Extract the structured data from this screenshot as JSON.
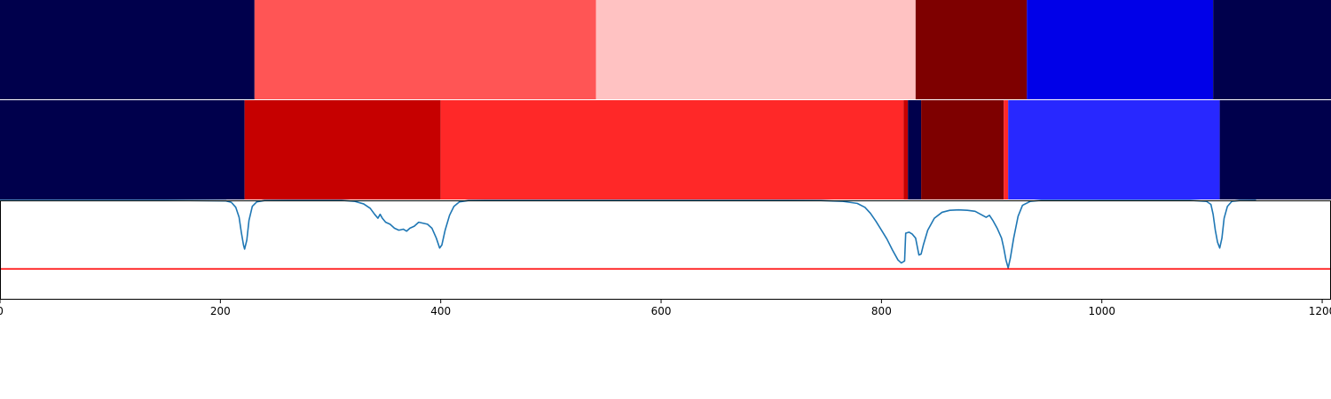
{
  "chart_data": [
    {
      "type": "segments",
      "xlim": [
        0,
        1208
      ],
      "segments": [
        {
          "start": 0,
          "end": 231,
          "color": "#00004c"
        },
        {
          "start": 231,
          "end": 541,
          "color": "#ff5555"
        },
        {
          "start": 541,
          "end": 831,
          "color": "#ffc2c2"
        },
        {
          "start": 831,
          "end": 932,
          "color": "#7e0000"
        },
        {
          "start": 932,
          "end": 1101,
          "color": "#0000e8"
        },
        {
          "start": 1101,
          "end": 1208,
          "color": "#00004c"
        }
      ]
    },
    {
      "type": "segments",
      "xlim": [
        0,
        1208
      ],
      "segments": [
        {
          "start": 0,
          "end": 222,
          "color": "#00004c"
        },
        {
          "start": 222,
          "end": 400,
          "color": "#c60000"
        },
        {
          "start": 400,
          "end": 820,
          "color": "#ff2828"
        },
        {
          "start": 820,
          "end": 824,
          "color": "#c60000"
        },
        {
          "start": 824,
          "end": 836,
          "color": "#00004c"
        },
        {
          "start": 836,
          "end": 911,
          "color": "#7e0000"
        },
        {
          "start": 911,
          "end": 915,
          "color": "#ff2828"
        },
        {
          "start": 915,
          "end": 1107,
          "color": "#2828ff"
        },
        {
          "start": 1107,
          "end": 1208,
          "color": "#00004c"
        }
      ]
    },
    {
      "type": "line",
      "xlim": [
        0,
        1208
      ],
      "ylim": [
        0,
        1
      ],
      "x_ticks": [
        0,
        200,
        400,
        600,
        800,
        1000,
        1200
      ],
      "series": [
        {
          "color": "#1f77b4",
          "points": [
            [
              0,
              1.0
            ],
            [
              150,
              1.0
            ],
            [
              205,
              0.995
            ],
            [
              210,
              0.98
            ],
            [
              214,
              0.93
            ],
            [
              217,
              0.83
            ],
            [
              219,
              0.68
            ],
            [
              221,
              0.55
            ],
            [
              222,
              0.51
            ],
            [
              224,
              0.6
            ],
            [
              226,
              0.8
            ],
            [
              229,
              0.94
            ],
            [
              233,
              0.985
            ],
            [
              240,
              0.998
            ],
            [
              260,
              1.0
            ],
            [
              310,
              1.0
            ],
            [
              322,
              0.99
            ],
            [
              330,
              0.965
            ],
            [
              336,
              0.92
            ],
            [
              340,
              0.86
            ],
            [
              343,
              0.82
            ],
            [
              345,
              0.86
            ],
            [
              347,
              0.82
            ],
            [
              350,
              0.78
            ],
            [
              354,
              0.76
            ],
            [
              358,
              0.72
            ],
            [
              362,
              0.7
            ],
            [
              366,
              0.71
            ],
            [
              369,
              0.69
            ],
            [
              372,
              0.72
            ],
            [
              376,
              0.74
            ],
            [
              380,
              0.78
            ],
            [
              384,
              0.77
            ],
            [
              388,
              0.76
            ],
            [
              392,
              0.72
            ],
            [
              396,
              0.62
            ],
            [
              399,
              0.52
            ],
            [
              401,
              0.55
            ],
            [
              404,
              0.7
            ],
            [
              408,
              0.85
            ],
            [
              412,
              0.94
            ],
            [
              417,
              0.985
            ],
            [
              425,
              0.998
            ],
            [
              440,
              1.0
            ],
            [
              700,
              1.0
            ],
            [
              745,
              0.998
            ],
            [
              765,
              0.99
            ],
            [
              778,
              0.97
            ],
            [
              785,
              0.93
            ],
            [
              790,
              0.87
            ],
            [
              795,
              0.79
            ],
            [
              800,
              0.7
            ],
            [
              805,
              0.61
            ],
            [
              810,
              0.5
            ],
            [
              815,
              0.4
            ],
            [
              818,
              0.37
            ],
            [
              821,
              0.39
            ],
            [
              822,
              0.67
            ],
            [
              825,
              0.68
            ],
            [
              828,
              0.66
            ],
            [
              831,
              0.62
            ],
            [
              834,
              0.45
            ],
            [
              836,
              0.46
            ],
            [
              838,
              0.55
            ],
            [
              842,
              0.7
            ],
            [
              848,
              0.82
            ],
            [
              855,
              0.88
            ],
            [
              862,
              0.9
            ],
            [
              870,
              0.905
            ],
            [
              878,
              0.9
            ],
            [
              885,
              0.89
            ],
            [
              890,
              0.86
            ],
            [
              895,
              0.83
            ],
            [
              898,
              0.85
            ],
            [
              901,
              0.8
            ],
            [
              905,
              0.72
            ],
            [
              909,
              0.62
            ],
            [
              911,
              0.52
            ],
            [
              913,
              0.4
            ],
            [
              915,
              0.32
            ],
            [
              917,
              0.42
            ],
            [
              920,
              0.62
            ],
            [
              924,
              0.84
            ],
            [
              928,
              0.95
            ],
            [
              935,
              0.99
            ],
            [
              945,
              1.0
            ],
            [
              1080,
              1.0
            ],
            [
              1095,
              0.99
            ],
            [
              1099,
              0.96
            ],
            [
              1101,
              0.86
            ],
            [
              1103,
              0.7
            ],
            [
              1105,
              0.58
            ],
            [
              1107,
              0.52
            ],
            [
              1109,
              0.62
            ],
            [
              1111,
              0.82
            ],
            [
              1114,
              0.94
            ],
            [
              1118,
              0.99
            ],
            [
              1125,
              0.998
            ],
            [
              1140,
              1.0
            ]
          ]
        },
        {
          "color": "#ff0000",
          "points": [
            [
              0,
              0.31
            ],
            [
              1208,
              0.31
            ]
          ]
        }
      ]
    }
  ]
}
